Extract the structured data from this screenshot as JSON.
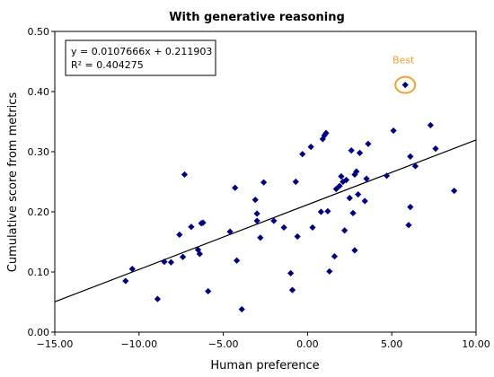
{
  "chart_data": {
    "type": "scatter",
    "title": "With generative reasoning",
    "xlabel": "Human preference",
    "ylabel": "Cumulative score from metrics",
    "xlim": [
      -15,
      10
    ],
    "ylim": [
      0,
      0.5
    ],
    "xticks": [
      -15,
      -10,
      -5,
      0,
      5,
      10
    ],
    "xtick_labels": [
      "−15.00",
      "−10.00",
      "−5.00",
      "0.00",
      "5.00",
      "10.00"
    ],
    "yticks": [
      0,
      0.1,
      0.2,
      0.3,
      0.4,
      0.5
    ],
    "ytick_labels": [
      "0.00",
      "0.10",
      "0.20",
      "0.30",
      "0.40",
      "0.50"
    ],
    "grid": false,
    "marker_color": "#00007f",
    "trendline": {
      "slope": 0.0107666,
      "intercept": 0.211903
    },
    "equation_lines": [
      "y = 0.0107666x + 0.211903",
      "R² = 0.404275"
    ],
    "annotation": {
      "label": "Best",
      "x": 5.8,
      "y": 0.411,
      "color": "#f0a030"
    },
    "points": [
      [
        -10.8,
        0.085
      ],
      [
        -10.4,
        0.105
      ],
      [
        -8.9,
        0.055
      ],
      [
        -8.5,
        0.117
      ],
      [
        -8.1,
        0.116
      ],
      [
        -7.6,
        0.162
      ],
      [
        -7.3,
        0.262
      ],
      [
        -7.4,
        0.125
      ],
      [
        -6.9,
        0.175
      ],
      [
        -6.5,
        0.137
      ],
      [
        -6.4,
        0.13
      ],
      [
        -6.3,
        0.181
      ],
      [
        -6.2,
        0.182
      ],
      [
        -5.9,
        0.068
      ],
      [
        -4.6,
        0.167
      ],
      [
        -4.3,
        0.24
      ],
      [
        -4.2,
        0.119
      ],
      [
        -3.9,
        0.038
      ],
      [
        -3.1,
        0.22
      ],
      [
        -3.0,
        0.197
      ],
      [
        -3.0,
        0.185
      ],
      [
        -2.8,
        0.157
      ],
      [
        -2.6,
        0.249
      ],
      [
        -2.0,
        0.185
      ],
      [
        -1.4,
        0.174
      ],
      [
        -1.0,
        0.098
      ],
      [
        -0.9,
        0.07
      ],
      [
        -0.7,
        0.25
      ],
      [
        -0.6,
        0.159
      ],
      [
        -0.3,
        0.296
      ],
      [
        0.2,
        0.308
      ],
      [
        0.3,
        0.174
      ],
      [
        0.8,
        0.2
      ],
      [
        0.9,
        0.321
      ],
      [
        1.0,
        0.327
      ],
      [
        1.1,
        0.331
      ],
      [
        1.2,
        0.201
      ],
      [
        1.3,
        0.101
      ],
      [
        1.6,
        0.126
      ],
      [
        1.7,
        0.238
      ],
      [
        1.9,
        0.243
      ],
      [
        2.0,
        0.259
      ],
      [
        2.1,
        0.25
      ],
      [
        2.2,
        0.169
      ],
      [
        2.3,
        0.253
      ],
      [
        2.5,
        0.223
      ],
      [
        2.6,
        0.302
      ],
      [
        2.7,
        0.198
      ],
      [
        2.8,
        0.262
      ],
      [
        2.8,
        0.136
      ],
      [
        2.9,
        0.267
      ],
      [
        3.0,
        0.229
      ],
      [
        3.1,
        0.298
      ],
      [
        3.4,
        0.218
      ],
      [
        3.5,
        0.255
      ],
      [
        3.6,
        0.313
      ],
      [
        4.7,
        0.26
      ],
      [
        5.1,
        0.335
      ],
      [
        5.8,
        0.411
      ],
      [
        6.0,
        0.178
      ],
      [
        6.1,
        0.292
      ],
      [
        6.1,
        0.208
      ],
      [
        6.4,
        0.276
      ],
      [
        7.3,
        0.344
      ],
      [
        7.6,
        0.305
      ],
      [
        8.7,
        0.235
      ]
    ]
  }
}
